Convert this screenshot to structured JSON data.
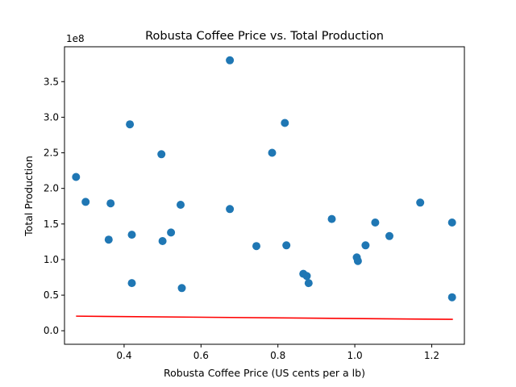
{
  "chart_data": {
    "type": "scatter",
    "title": "Robusta Coffee Price vs. Total Production",
    "xlabel": "Robusta Coffee Price (US cents per a lb)",
    "ylabel": "Total Production",
    "y_offset_label": "1e8",
    "xlim": [
      0.245,
      1.285
    ],
    "ylim": [
      -0.19,
      3.99
    ],
    "x_ticks": [
      0.4,
      0.6,
      0.8,
      1.0,
      1.2
    ],
    "x_tick_labels": [
      "0.4",
      "0.6",
      "0.8",
      "1.0",
      "1.2"
    ],
    "y_ticks": [
      0.0,
      0.5,
      1.0,
      1.5,
      2.0,
      2.5,
      3.0,
      3.5
    ],
    "y_tick_labels": [
      "0.0",
      "0.5",
      "1.0",
      "1.5",
      "2.0",
      "2.5",
      "3.0",
      "3.5"
    ],
    "grid": false,
    "legend": "none",
    "point_color": "#1f77b4",
    "trend_color": "#ff0000",
    "trend_line": {
      "x": [
        0.275,
        1.255
      ],
      "y": [
        0.205,
        0.16
      ]
    },
    "series": [
      {
        "x": [
          0.275,
          0.3,
          0.365,
          0.36,
          0.42,
          0.415,
          0.42,
          0.497,
          0.5,
          0.547,
          0.522,
          0.55,
          0.675,
          0.675,
          0.744,
          0.785,
          0.818,
          0.822,
          0.866,
          0.875,
          0.88,
          0.94,
          1.005,
          1.008,
          1.028,
          1.053,
          1.09,
          1.17,
          1.253,
          1.253
        ],
        "y": [
          2.16,
          1.81,
          1.79,
          1.28,
          1.35,
          2.9,
          0.67,
          2.48,
          1.26,
          1.77,
          1.38,
          0.6,
          3.8,
          1.71,
          1.19,
          2.5,
          2.92,
          1.2,
          0.8,
          0.77,
          0.67,
          1.57,
          1.03,
          0.98,
          1.2,
          1.52,
          1.33,
          1.8,
          1.52,
          0.47
        ]
      }
    ]
  }
}
